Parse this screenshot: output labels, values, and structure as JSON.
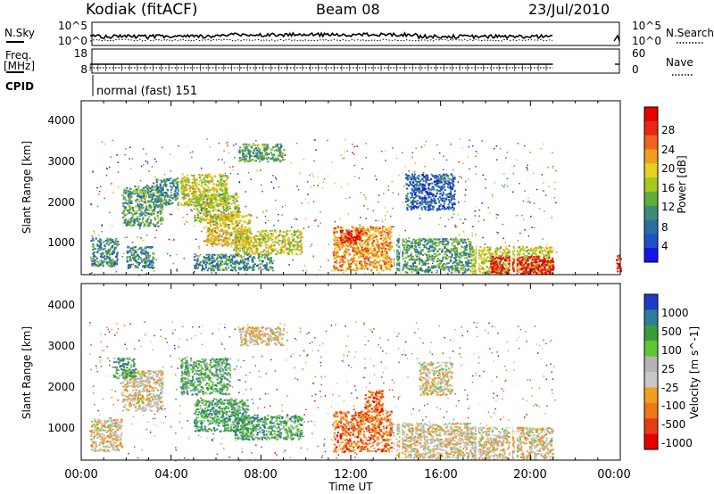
{
  "header": {
    "station": "Kodiak (fitACF)",
    "beam": "Beam 08",
    "date": "23/Jul/2010"
  },
  "top_panels": {
    "nsky_label": "N.Sky",
    "nsky_ticks": [
      "10^5",
      "10^0"
    ],
    "nsearch_label": "N.Search",
    "nsearch_ticks": [
      "10^5",
      "10^0"
    ],
    "freq_label": "Freq.",
    "freq_unit": "[MHz]",
    "freq_ticks": [
      "18",
      "8"
    ],
    "nave_label": "Nave",
    "nave_ticks": [
      "60",
      "0"
    ],
    "cpid_label": "CPID",
    "cpid_text": "normal (fast) 151"
  },
  "x_axis": {
    "title": "Time UT",
    "ticks": [
      "00:00",
      "04:00",
      "08:00",
      "12:00",
      "16:00",
      "20:00",
      "00:00"
    ]
  },
  "chart_data": [
    {
      "type": "heatmap",
      "name": "Power",
      "ylabel": "Slant Range [km]",
      "xlabel": "Time UT",
      "xlim_hours": [
        0,
        24
      ],
      "ylim_km": [
        180,
        4500
      ],
      "y_ticks": [
        "1000",
        "2000",
        "3000",
        "4000"
      ],
      "colorbar": {
        "label": "Power [dB]",
        "ticks": [
          "28",
          "24",
          "20",
          "16",
          "12",
          "8",
          "4"
        ],
        "colors": [
          "#1414e6",
          "#1e50c8",
          "#2d6ea5",
          "#3c8c78",
          "#5fae3c",
          "#a8c81e",
          "#e6d21e",
          "#f0a01e",
          "#f0641e",
          "#e62814",
          "#e60000"
        ]
      },
      "blobs": [
        {
          "t": [
            0.4,
            1.6
          ],
          "r": [
            400,
            1100
          ],
          "level": 0.3
        },
        {
          "t": [
            1.8,
            3.6
          ],
          "r": [
            1400,
            2400
          ],
          "level": 0.35
        },
        {
          "t": [
            2.0,
            3.2
          ],
          "r": [
            350,
            900
          ],
          "level": 0.3
        },
        {
          "t": [
            3.3,
            4.3
          ],
          "r": [
            1900,
            2600
          ],
          "level": 0.3
        },
        {
          "t": [
            4.4,
            6.5
          ],
          "r": [
            1900,
            2700
          ],
          "level": 0.55
        },
        {
          "t": [
            5.0,
            7.0
          ],
          "r": [
            1500,
            2200
          ],
          "level": 0.5
        },
        {
          "t": [
            5.5,
            7.5
          ],
          "r": [
            900,
            1700
          ],
          "level": 0.6
        },
        {
          "t": [
            6.8,
            9.8
          ],
          "r": [
            700,
            1300
          ],
          "level": 0.55
        },
        {
          "t": [
            7.0,
            9.0
          ],
          "r": [
            3000,
            3450
          ],
          "level": 0.35
        },
        {
          "t": [
            5.0,
            8.5
          ],
          "r": [
            300,
            700
          ],
          "level": 0.3
        },
        {
          "t": [
            11.2,
            13.8
          ],
          "r": [
            300,
            1400
          ],
          "level": 0.7
        },
        {
          "t": [
            11.5,
            12.5
          ],
          "r": [
            1000,
            1300
          ],
          "level": 0.95
        },
        {
          "t": [
            13.9,
            17.3
          ],
          "r": [
            250,
            1100
          ],
          "level": 0.35
        },
        {
          "t": [
            14.4,
            16.6
          ],
          "r": [
            1800,
            2700
          ],
          "level": 0.2
        },
        {
          "t": [
            17.3,
            21.0
          ],
          "r": [
            220,
            900
          ],
          "level": 0.55
        },
        {
          "t": [
            18.2,
            21.0
          ],
          "r": [
            220,
            650
          ],
          "level": 0.98
        },
        {
          "t": [
            23.8,
            24.0
          ],
          "r": [
            200,
            700
          ],
          "level": 0.9
        }
      ]
    },
    {
      "type": "heatmap",
      "name": "Velocity",
      "ylabel": "Slant Range [km]",
      "xlabel": "Time UT",
      "xlim_hours": [
        0,
        24
      ],
      "ylim_km": [
        180,
        4500
      ],
      "y_ticks": [
        "1000",
        "2000",
        "3000",
        "4000"
      ],
      "colorbar": {
        "label": "Velocity [m s^-1]",
        "ticks": [
          "1000",
          "500",
          "100",
          "25",
          "-25",
          "-100",
          "-500",
          "-1000"
        ],
        "colors": [
          "#1e3cc8",
          "#2d7d9a",
          "#3c9b3c",
          "#5fc832",
          "#b4b4b4",
          "#c8c8c8",
          "#f0a01e",
          "#f07814",
          "#e63c14",
          "#e60000"
        ]
      },
      "blobs": [
        {
          "t": [
            0.4,
            1.8
          ],
          "r": [
            400,
            1200
          ],
          "level": 0.45
        },
        {
          "t": [
            1.8,
            3.6
          ],
          "r": [
            1400,
            2400
          ],
          "level": 0.45
        },
        {
          "t": [
            1.4,
            2.4
          ],
          "r": [
            2200,
            2700
          ],
          "level": 0.75
        },
        {
          "t": [
            4.4,
            6.6
          ],
          "r": [
            1800,
            2700
          ],
          "level": 0.7
        },
        {
          "t": [
            5.0,
            7.4
          ],
          "r": [
            900,
            1700
          ],
          "level": 0.72
        },
        {
          "t": [
            6.8,
            9.8
          ],
          "r": [
            700,
            1300
          ],
          "level": 0.74
        },
        {
          "t": [
            7.0,
            9.0
          ],
          "r": [
            3000,
            3450
          ],
          "level": 0.45
        },
        {
          "t": [
            11.2,
            13.8
          ],
          "r": [
            400,
            1400
          ],
          "level": 0.25
        },
        {
          "t": [
            12.6,
            13.4
          ],
          "r": [
            1400,
            1900
          ],
          "level": 0.2
        },
        {
          "t": [
            13.9,
            17.3
          ],
          "r": [
            250,
            1100
          ],
          "level": 0.45
        },
        {
          "t": [
            17.3,
            21.0
          ],
          "r": [
            220,
            1000
          ],
          "level": 0.45
        },
        {
          "t": [
            15.0,
            16.5
          ],
          "r": [
            1800,
            2600
          ],
          "level": 0.48
        }
      ]
    }
  ]
}
